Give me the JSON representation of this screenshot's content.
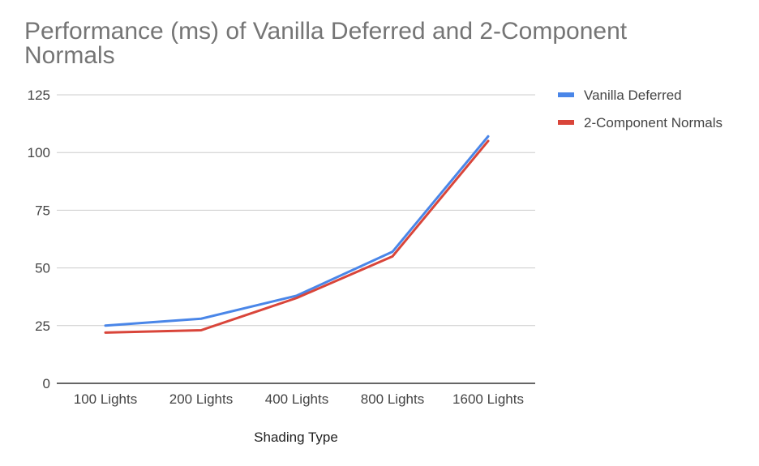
{
  "chart_data": {
    "type": "line",
    "title": "Performance (ms) of Vanilla Deferred and 2-Component Normals",
    "xlabel": "Shading Type",
    "ylabel": "",
    "categories": [
      "100 Lights",
      "200 Lights",
      "400 Lights",
      "800 Lights",
      "1600 Lights"
    ],
    "series": [
      {
        "name": "Vanilla Deferred",
        "color": "#4a86e8",
        "values": [
          25,
          28,
          38,
          57,
          107
        ]
      },
      {
        "name": "2-Component Normals",
        "color": "#d9453a",
        "values": [
          22,
          23,
          37,
          55,
          105
        ]
      }
    ],
    "ylim": [
      0,
      125
    ],
    "yticks": [
      0,
      25,
      50,
      75,
      100,
      125
    ],
    "grid": true,
    "legend_position": "right"
  }
}
